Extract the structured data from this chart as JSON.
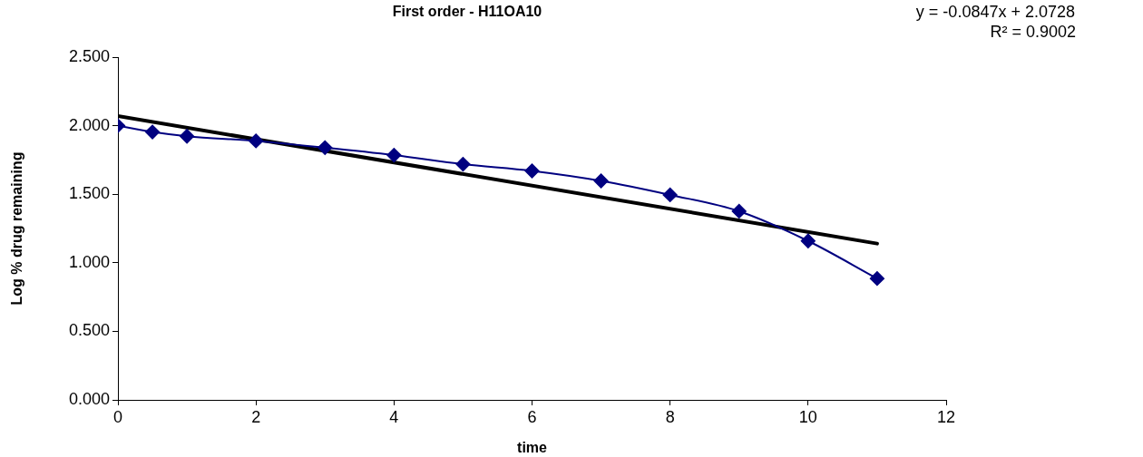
{
  "chart_data": {
    "type": "line",
    "title": "First order - H11OA10",
    "xlabel": "time",
    "ylabel": "Log % drug remaining",
    "annotations": [
      "y = -0.0847x + 2.0728",
      "R² = 0.9002"
    ],
    "xlim": [
      0,
      12
    ],
    "xticks": [
      0,
      2,
      4,
      6,
      8,
      10,
      12
    ],
    "ylim": [
      0,
      2.5
    ],
    "yticks": [
      {
        "value": 0,
        "label": "0.000"
      },
      {
        "value": 0.5,
        "label": "0.500"
      },
      {
        "value": 1,
        "label": "1.000"
      },
      {
        "value": 1.5,
        "label": "1.500"
      },
      {
        "value": 2,
        "label": "2.000"
      },
      {
        "value": 2.5,
        "label": "2.500"
      }
    ],
    "grid": false,
    "legend": false,
    "line_style": "solid",
    "series": [
      {
        "type": "line",
        "color": "#000080",
        "marker": "diamond",
        "x": [
          0,
          0.5,
          1,
          2,
          3,
          4,
          5,
          6,
          7,
          8,
          9,
          10,
          11
        ],
        "values": [
          2.0,
          1.954,
          1.923,
          1.889,
          1.84,
          1.785,
          1.719,
          1.67,
          1.597,
          1.495,
          1.376,
          1.159,
          0.885
        ]
      },
      {
        "type": "line",
        "color": "#000000",
        "marker": "none",
        "x": [
          0,
          11
        ],
        "values": [
          2.07,
          1.14
        ]
      }
    ]
  }
}
